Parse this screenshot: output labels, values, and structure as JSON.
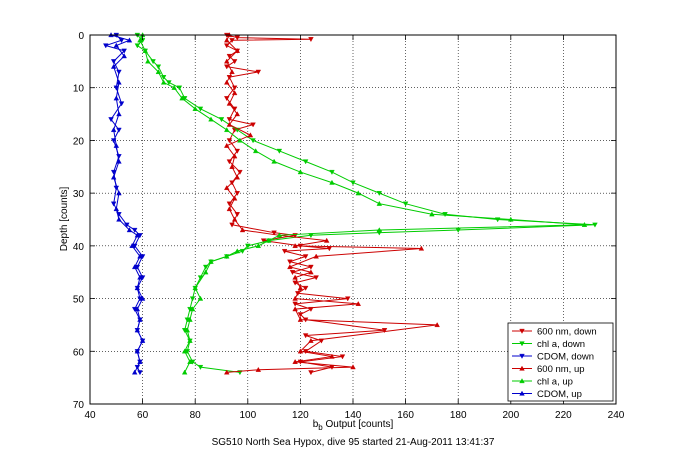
{
  "chart_data": {
    "type": "line",
    "title": "",
    "xlabel": "b_b Output [counts]",
    "xlabel_main": "b",
    "xlabel_sub": "b",
    "xlabel_rest": " Output [counts]",
    "ylabel": "Depth [counts]",
    "caption": "SG510 North Sea Hypox, dive 95 started 21-Aug-2011 13:41:37",
    "xlim": [
      40,
      240
    ],
    "ylim": [
      0,
      70
    ],
    "y_reversed": true,
    "xticks": [
      40,
      60,
      80,
      100,
      120,
      140,
      160,
      180,
      200,
      220,
      240
    ],
    "yticks": [
      0,
      10,
      20,
      30,
      40,
      50,
      60,
      70
    ],
    "grid": true,
    "legend_position": "bottom-right",
    "series": [
      {
        "name": "600 nm, down",
        "color": "#cc0000",
        "marker": "down",
        "points": [
          [
            92,
            0
          ],
          [
            96,
            0.5
          ],
          [
            124,
            0.8
          ],
          [
            94,
            1
          ],
          [
            92,
            2
          ],
          [
            96,
            3
          ],
          [
            93,
            4
          ],
          [
            95,
            5
          ],
          [
            92,
            6
          ],
          [
            104,
            7
          ],
          [
            93,
            8
          ],
          [
            95,
            10
          ],
          [
            92,
            12
          ],
          [
            95,
            14
          ],
          [
            93,
            16
          ],
          [
            102,
            17
          ],
          [
            95,
            18
          ],
          [
            93,
            20
          ],
          [
            96,
            22
          ],
          [
            93,
            24
          ],
          [
            97,
            26
          ],
          [
            94,
            28
          ],
          [
            96,
            30
          ],
          [
            93,
            32
          ],
          [
            96,
            34
          ],
          [
            94,
            36
          ],
          [
            110,
            37.5
          ],
          [
            118,
            38
          ],
          [
            106,
            39
          ],
          [
            120,
            40
          ],
          [
            131,
            40.5
          ],
          [
            114,
            41
          ],
          [
            122,
            42
          ],
          [
            116,
            43
          ],
          [
            124,
            44
          ],
          [
            117,
            45
          ],
          [
            126,
            46
          ],
          [
            118,
            47
          ],
          [
            122,
            48
          ],
          [
            119,
            49
          ],
          [
            138,
            50
          ],
          [
            118,
            51
          ],
          [
            124,
            52
          ],
          [
            120,
            53
          ],
          [
            122,
            54
          ],
          [
            152,
            56
          ],
          [
            122,
            57
          ],
          [
            128,
            58
          ],
          [
            122,
            60
          ],
          [
            136,
            61
          ],
          [
            120,
            62
          ],
          [
            132,
            63
          ],
          [
            124,
            64
          ]
        ]
      },
      {
        "name": "chl a, down",
        "color": "#00cc00",
        "marker": "down",
        "points": [
          [
            58,
            0
          ],
          [
            60,
            1
          ],
          [
            58,
            2
          ],
          [
            61,
            3
          ],
          [
            64,
            5
          ],
          [
            66,
            6
          ],
          [
            68,
            8
          ],
          [
            70,
            9
          ],
          [
            74,
            10
          ],
          [
            76,
            12
          ],
          [
            82,
            14
          ],
          [
            90,
            16
          ],
          [
            96,
            18
          ],
          [
            102,
            20
          ],
          [
            112,
            22
          ],
          [
            122,
            24
          ],
          [
            132,
            26
          ],
          [
            140,
            28
          ],
          [
            150,
            30
          ],
          [
            160,
            32
          ],
          [
            175,
            34
          ],
          [
            195,
            35
          ],
          [
            232,
            36
          ],
          [
            180,
            37
          ],
          [
            150,
            37.5
          ],
          [
            124,
            38
          ],
          [
            108,
            39
          ],
          [
            100,
            40
          ],
          [
            98,
            41
          ],
          [
            92,
            42
          ],
          [
            86,
            43
          ],
          [
            84,
            44
          ],
          [
            82,
            46
          ],
          [
            80,
            48
          ],
          [
            79,
            50
          ],
          [
            78,
            52
          ],
          [
            77,
            54
          ],
          [
            76,
            56
          ],
          [
            78,
            58
          ],
          [
            77,
            60
          ],
          [
            79,
            62
          ],
          [
            82,
            63
          ],
          [
            97,
            64
          ]
        ]
      },
      {
        "name": "CDOM, down",
        "color": "#0000cc",
        "marker": "down",
        "points": [
          [
            50,
            0
          ],
          [
            52,
            1
          ],
          [
            46,
            2
          ],
          [
            53,
            3
          ],
          [
            49,
            5
          ],
          [
            51,
            7
          ],
          [
            50,
            10
          ],
          [
            52,
            13
          ],
          [
            48,
            16
          ],
          [
            51,
            18
          ],
          [
            49,
            20
          ],
          [
            51,
            23
          ],
          [
            49,
            26
          ],
          [
            50,
            29
          ],
          [
            49,
            32
          ],
          [
            51,
            34
          ],
          [
            54,
            36
          ],
          [
            57,
            37
          ],
          [
            59,
            38
          ],
          [
            57,
            40
          ],
          [
            60,
            42
          ],
          [
            58,
            44
          ],
          [
            60,
            46
          ],
          [
            58,
            48
          ],
          [
            59,
            50
          ],
          [
            57,
            52
          ],
          [
            59,
            54
          ],
          [
            58,
            56
          ],
          [
            60,
            58
          ],
          [
            58,
            60
          ],
          [
            59,
            62
          ],
          [
            58,
            63
          ],
          [
            59,
            64
          ]
        ]
      },
      {
        "name": "600 nm, up",
        "color": "#cc0000",
        "marker": "up",
        "points": [
          [
            92,
            64
          ],
          [
            104,
            63.5
          ],
          [
            140,
            63
          ],
          [
            118,
            62
          ],
          [
            132,
            61
          ],
          [
            120,
            60
          ],
          [
            124,
            58
          ],
          [
            172,
            55
          ],
          [
            120,
            54
          ],
          [
            118,
            52
          ],
          [
            142,
            51
          ],
          [
            118,
            50
          ],
          [
            120,
            48
          ],
          [
            118,
            46
          ],
          [
            124,
            45
          ],
          [
            116,
            44
          ],
          [
            126,
            42
          ],
          [
            166,
            40.5
          ],
          [
            118,
            40
          ],
          [
            130,
            39
          ],
          [
            112,
            38
          ],
          [
            98,
            37
          ],
          [
            95,
            35
          ],
          [
            93,
            33
          ],
          [
            95,
            31
          ],
          [
            92,
            29
          ],
          [
            96,
            27
          ],
          [
            94,
            25
          ],
          [
            95,
            23
          ],
          [
            92,
            21
          ],
          [
            101,
            19
          ],
          [
            93,
            17
          ],
          [
            96,
            15
          ],
          [
            93,
            13
          ],
          [
            95,
            11
          ],
          [
            92,
            9
          ],
          [
            94,
            7
          ],
          [
            92,
            5
          ],
          [
            96,
            3
          ],
          [
            92,
            1
          ],
          [
            93,
            0
          ]
        ]
      },
      {
        "name": "chl a, up",
        "color": "#00cc00",
        "marker": "up",
        "points": [
          [
            76,
            64
          ],
          [
            78,
            62
          ],
          [
            76,
            60
          ],
          [
            78,
            58
          ],
          [
            77,
            56
          ],
          [
            78,
            54
          ],
          [
            79,
            52
          ],
          [
            82,
            50
          ],
          [
            80,
            48
          ],
          [
            84,
            45
          ],
          [
            86,
            43
          ],
          [
            92,
            42
          ],
          [
            96,
            41
          ],
          [
            104,
            40
          ],
          [
            108,
            39
          ],
          [
            112,
            38
          ],
          [
            150,
            37
          ],
          [
            228,
            36
          ],
          [
            200,
            35
          ],
          [
            170,
            34
          ],
          [
            150,
            32
          ],
          [
            142,
            30
          ],
          [
            132,
            28
          ],
          [
            120,
            26
          ],
          [
            110,
            24
          ],
          [
            103,
            22
          ],
          [
            97,
            20
          ],
          [
            92,
            18
          ],
          [
            86,
            16
          ],
          [
            80,
            14
          ],
          [
            75,
            12
          ],
          [
            72,
            10
          ],
          [
            68,
            9
          ],
          [
            66,
            7
          ],
          [
            62,
            5
          ],
          [
            61,
            3
          ],
          [
            59,
            1
          ],
          [
            60,
            0
          ]
        ]
      },
      {
        "name": "CDOM, up",
        "color": "#0000cc",
        "marker": "up",
        "points": [
          [
            57,
            64
          ],
          [
            59,
            62
          ],
          [
            58,
            60
          ],
          [
            60,
            58
          ],
          [
            58,
            56
          ],
          [
            59,
            54
          ],
          [
            58,
            52
          ],
          [
            60,
            50
          ],
          [
            58,
            48
          ],
          [
            59,
            46
          ],
          [
            57,
            44
          ],
          [
            59,
            42
          ],
          [
            56,
            40
          ],
          [
            58,
            38
          ],
          [
            55,
            37
          ],
          [
            51,
            35
          ],
          [
            50,
            33
          ],
          [
            51,
            30
          ],
          [
            49,
            27
          ],
          [
            51,
            24
          ],
          [
            50,
            21
          ],
          [
            49,
            18
          ],
          [
            51,
            15
          ],
          [
            50,
            12
          ],
          [
            51,
            9
          ],
          [
            49,
            6
          ],
          [
            53,
            4
          ],
          [
            50,
            2
          ],
          [
            55,
            1
          ],
          [
            48,
            0
          ]
        ]
      }
    ]
  }
}
